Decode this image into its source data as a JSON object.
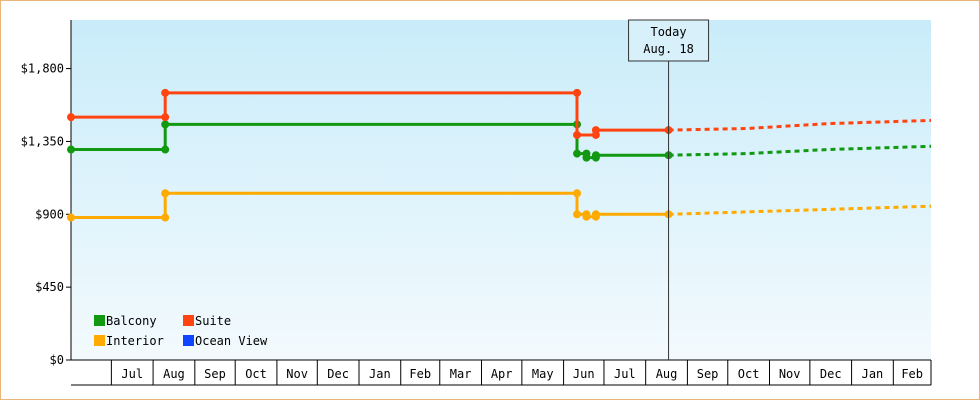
{
  "chart_data": {
    "type": "line",
    "title": "",
    "xlabel": "",
    "ylabel": "",
    "ylim": [
      0,
      2100
    ],
    "y_ticks": [
      {
        "value": 0,
        "label": "$0"
      },
      {
        "value": 450,
        "label": "$450"
      },
      {
        "value": 900,
        "label": "$900"
      },
      {
        "value": 1350,
        "label": "$1,350"
      },
      {
        "value": 1800,
        "label": "$1,800"
      }
    ],
    "x_range": [
      "2019-06-01",
      "2021-03-01"
    ],
    "months": [
      {
        "label": "Jul",
        "start": "2019-07-01",
        "end": "2019-08-01"
      },
      {
        "label": "Aug",
        "start": "2019-08-01",
        "end": "2019-09-01"
      },
      {
        "label": "Sep",
        "start": "2019-09-01",
        "end": "2019-10-01"
      },
      {
        "label": "Oct",
        "start": "2019-10-01",
        "end": "2019-11-01"
      },
      {
        "label": "Nov",
        "start": "2019-11-01",
        "end": "2019-12-01"
      },
      {
        "label": "Dec",
        "start": "2019-12-01",
        "end": "2020-01-01"
      },
      {
        "label": "Jan",
        "start": "2020-01-01",
        "end": "2020-02-01"
      },
      {
        "label": "Feb",
        "start": "2020-02-01",
        "end": "2020-03-01"
      },
      {
        "label": "Mar",
        "start": "2020-03-01",
        "end": "2020-04-01"
      },
      {
        "label": "Apr",
        "start": "2020-04-01",
        "end": "2020-05-01"
      },
      {
        "label": "May",
        "start": "2020-05-01",
        "end": "2020-06-01"
      },
      {
        "label": "Jun",
        "start": "2020-06-01",
        "end": "2020-07-01"
      },
      {
        "label": "Jul",
        "start": "2020-07-01",
        "end": "2020-08-01"
      },
      {
        "label": "Aug",
        "start": "2020-08-01",
        "end": "2020-09-01"
      },
      {
        "label": "Sep",
        "start": "2020-09-01",
        "end": "2020-10-01"
      },
      {
        "label": "Oct",
        "start": "2020-10-01",
        "end": "2020-11-01"
      },
      {
        "label": "Nov",
        "start": "2020-11-01",
        "end": "2020-12-01"
      },
      {
        "label": "Dec",
        "start": "2020-12-01",
        "end": "2021-01-01"
      },
      {
        "label": "Jan",
        "start": "2021-01-01",
        "end": "2021-02-01"
      },
      {
        "label": "Feb",
        "start": "2021-02-01",
        "end": "2021-03-01"
      }
    ],
    "today": {
      "date": "2020-08-18",
      "line1": "Today",
      "line2": "Aug. 18"
    },
    "series": [
      {
        "name": "Balcony",
        "color": "#119911",
        "points": [
          [
            "2019-06-01",
            1300
          ],
          [
            "2019-08-10",
            1300
          ],
          [
            "2019-08-10",
            1455
          ],
          [
            "2020-06-11",
            1455
          ],
          [
            "2020-06-11",
            1275
          ],
          [
            "2020-06-18",
            1275
          ],
          [
            "2020-06-18",
            1250
          ],
          [
            "2020-06-25",
            1250
          ],
          [
            "2020-06-25",
            1265
          ],
          [
            "2020-08-18",
            1265
          ]
        ],
        "forecast": [
          [
            "2020-08-18",
            1265
          ],
          [
            "2020-10-15",
            1275
          ],
          [
            "2020-12-15",
            1300
          ],
          [
            "2021-03-01",
            1320
          ]
        ]
      },
      {
        "name": "Suite",
        "color": "#ff4411",
        "points": [
          [
            "2019-06-01",
            1500
          ],
          [
            "2019-08-10",
            1500
          ],
          [
            "2019-08-10",
            1650
          ],
          [
            "2020-06-11",
            1650
          ],
          [
            "2020-06-11",
            1390
          ],
          [
            "2020-06-25",
            1390
          ],
          [
            "2020-06-25",
            1420
          ],
          [
            "2020-08-18",
            1420
          ]
        ],
        "forecast": [
          [
            "2020-08-18",
            1420
          ],
          [
            "2020-10-15",
            1430
          ],
          [
            "2020-12-15",
            1460
          ],
          [
            "2021-03-01",
            1480
          ]
        ]
      },
      {
        "name": "Interior",
        "color": "#ffaa00",
        "points": [
          [
            "2019-06-01",
            880
          ],
          [
            "2019-08-10",
            880
          ],
          [
            "2019-08-10",
            1030
          ],
          [
            "2020-06-11",
            1030
          ],
          [
            "2020-06-11",
            900
          ],
          [
            "2020-06-18",
            900
          ],
          [
            "2020-06-18",
            885
          ],
          [
            "2020-06-25",
            885
          ],
          [
            "2020-06-25",
            900
          ],
          [
            "2020-08-18",
            900
          ]
        ],
        "forecast": [
          [
            "2020-08-18",
            900
          ],
          [
            "2020-10-15",
            915
          ],
          [
            "2020-12-15",
            930
          ],
          [
            "2021-03-01",
            950
          ]
        ]
      },
      {
        "name": "Ocean View",
        "color": "#1144ff",
        "points": [],
        "forecast": []
      }
    ],
    "legend": {
      "placement": "bottom-left",
      "entries": [
        {
          "label": "Balcony",
          "color": "#119911"
        },
        {
          "label": "Suite",
          "color": "#ff4411"
        },
        {
          "label": "Interior",
          "color": "#ffaa00"
        },
        {
          "label": "Ocean View",
          "color": "#1144ff"
        }
      ]
    },
    "grid": false
  }
}
